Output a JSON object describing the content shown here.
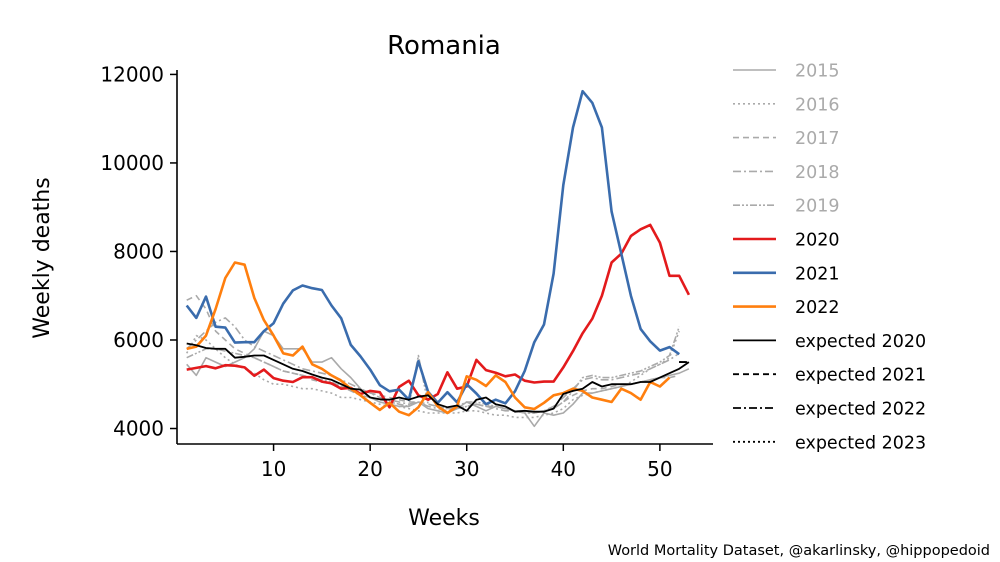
{
  "chart_data": {
    "type": "line",
    "title": "Romania",
    "xlabel": "Weeks",
    "ylabel": "Weekly deaths",
    "xlim": [
      0,
      55.5
    ],
    "ylim": [
      3650,
      12100
    ],
    "xticks": [
      10,
      20,
      30,
      40,
      50
    ],
    "yticks": [
      4000,
      6000,
      8000,
      10000,
      12000
    ],
    "grid": false,
    "legend_position": "right",
    "credit": "World Mortality Dataset, @akarlinsky, @hippopedoid",
    "series": [
      {
        "name": "2015",
        "color": "#aaaaaa",
        "dash": "solid",
        "width": 1.6,
        "x": [
          1,
          2,
          3,
          4,
          5,
          6,
          7,
          8,
          9,
          10,
          11,
          12,
          13,
          14,
          15,
          16,
          17,
          18,
          19,
          20,
          21,
          22,
          23,
          24,
          25,
          26,
          27,
          28,
          29,
          30,
          31,
          32,
          33,
          34,
          35,
          36,
          37,
          38,
          39,
          40,
          41,
          42,
          43,
          44,
          45,
          46,
          47,
          48,
          49,
          50,
          51,
          52,
          53
        ],
        "y": [
          5450,
          5200,
          5600,
          5500,
          5400,
          5500,
          5600,
          5800,
          6200,
          6100,
          5800,
          5800,
          5800,
          5500,
          5500,
          5600,
          5350,
          5150,
          4900,
          4700,
          4600,
          4550,
          4500,
          4500,
          4600,
          4450,
          4400,
          4350,
          4450,
          4600,
          4500,
          4400,
          4500,
          4450,
          4400,
          4350,
          4050,
          4350,
          4300,
          4350,
          4550,
          4800,
          4800,
          4850,
          4900,
          4950,
          5000,
          5050,
          5100,
          5150,
          5200,
          5250,
          5350
        ]
      },
      {
        "name": "2016",
        "color": "#aaaaaa",
        "dash": "dotted",
        "width": 1.6,
        "x": [
          1,
          2,
          3,
          4,
          5,
          6,
          7,
          8,
          9,
          10,
          11,
          12,
          13,
          14,
          15,
          16,
          17,
          18,
          19,
          20,
          21,
          22,
          23,
          24,
          25,
          26,
          27,
          28,
          29,
          30,
          31,
          32,
          33,
          34,
          35,
          36,
          37,
          38,
          39,
          40,
          41,
          42,
          43,
          44,
          45,
          46,
          47,
          48,
          49,
          50,
          51,
          52
        ],
        "y": [
          5700,
          6100,
          6000,
          5800,
          5600,
          5450,
          5350,
          5250,
          5100,
          5000,
          5000,
          4950,
          4900,
          4900,
          4850,
          4800,
          4700,
          4700,
          4650,
          4600,
          4550,
          4500,
          4500,
          4450,
          4400,
          4350,
          4350,
          4350,
          4350,
          4400,
          4400,
          4350,
          4300,
          4300,
          4250,
          4250,
          4250,
          4300,
          4350,
          4450,
          4650,
          4750,
          4800,
          4850,
          4900,
          4950,
          5050,
          5200,
          5350,
          5450,
          5600,
          6200
        ]
      },
      {
        "name": "2017",
        "color": "#aaaaaa",
        "dash": "dashed",
        "width": 1.6,
        "x": [
          1,
          2,
          3,
          4,
          5,
          6,
          7,
          8,
          9,
          10,
          11,
          12,
          13,
          14,
          15,
          16,
          17,
          18,
          19,
          20,
          21,
          22,
          23,
          24,
          25,
          26,
          27,
          28,
          29,
          30,
          31,
          32,
          33,
          34,
          35,
          36,
          37,
          38,
          39,
          40,
          41,
          42,
          43,
          44,
          45,
          46,
          47,
          48,
          49,
          50,
          51,
          52
        ],
        "y": [
          6900,
          7000,
          6700,
          6200,
          6000,
          5800,
          5700,
          5600,
          5500,
          5400,
          5300,
          5250,
          5200,
          5100,
          5050,
          5000,
          4950,
          4900,
          4850,
          4800,
          4750,
          4700,
          4650,
          4600,
          4600,
          4550,
          4500,
          4450,
          4450,
          4500,
          4550,
          4500,
          4500,
          4450,
          4400,
          4400,
          4350,
          4400,
          4450,
          4600,
          4750,
          4850,
          4900,
          4900,
          4950,
          5000,
          5000,
          5050,
          5100,
          5150,
          5150,
          5200
        ]
      },
      {
        "name": "2018",
        "color": "#aaaaaa",
        "dash": "dashdot",
        "width": 1.6,
        "x": [
          1,
          2,
          3,
          4,
          5,
          6,
          7,
          8,
          9,
          10,
          11,
          12,
          13,
          14,
          15,
          16,
          17,
          18,
          19,
          20,
          21,
          22,
          23,
          24,
          25,
          26,
          27,
          28,
          29,
          30,
          31,
          32,
          33,
          34,
          35,
          36,
          37,
          38,
          39,
          40,
          41,
          42,
          43,
          44,
          45,
          46,
          47,
          48,
          49,
          50,
          51,
          52
        ],
        "y": [
          5800,
          6000,
          6200,
          6400,
          6500,
          6300,
          6000,
          5850,
          5750,
          5650,
          5550,
          5450,
          5350,
          5300,
          5250,
          5200,
          5100,
          5000,
          4900,
          4800,
          4700,
          4650,
          4600,
          4550,
          4600,
          4500,
          4450,
          4400,
          4450,
          4500,
          4550,
          4500,
          4450,
          4400,
          4400,
          4350,
          4350,
          4400,
          4500,
          4700,
          4900,
          5100,
          5150,
          5100,
          5100,
          5150,
          5200,
          5250,
          5350,
          5450,
          5550,
          5700
        ]
      },
      {
        "name": "2019",
        "color": "#aaaaaa",
        "dash": "dashdotdot",
        "width": 1.6,
        "x": [
          1,
          2,
          3,
          4,
          5,
          6,
          7,
          8,
          9,
          10,
          11,
          12,
          13,
          14,
          15,
          16,
          17,
          18,
          19,
          20,
          21,
          22,
          23,
          24,
          25,
          26,
          27,
          28,
          29,
          30,
          31,
          32,
          33,
          34,
          35,
          36,
          37,
          38,
          39,
          40,
          41,
          42,
          43,
          44,
          45,
          46,
          47,
          48,
          49,
          50,
          51,
          52
        ],
        "y": [
          5600,
          5700,
          5800,
          5800,
          5750,
          5700,
          5650,
          5600,
          5500,
          5400,
          5300,
          5250,
          5200,
          5150,
          5100,
          5050,
          4950,
          4850,
          4750,
          4700,
          4650,
          4600,
          4550,
          4500,
          5650,
          4550,
          4500,
          4450,
          4500,
          4600,
          4600,
          4550,
          4500,
          4450,
          4400,
          4350,
          4350,
          4400,
          4450,
          4600,
          4850,
          5150,
          5200,
          5150,
          5150,
          5200,
          5250,
          5300,
          5400,
          5500,
          5650,
          6300
        ]
      },
      {
        "name": "2020",
        "color": "#e31a1c",
        "dash": "solid",
        "width": 2.6,
        "x": [
          1,
          2,
          3,
          4,
          5,
          6,
          7,
          8,
          9,
          10,
          11,
          12,
          13,
          14,
          15,
          16,
          17,
          18,
          19,
          20,
          21,
          22,
          23,
          24,
          25,
          26,
          27,
          28,
          29,
          30,
          31,
          32,
          33,
          34,
          35,
          36,
          37,
          38,
          39,
          40,
          41,
          42,
          43,
          44,
          45,
          46,
          47,
          48,
          49,
          50,
          51,
          52,
          53
        ],
        "y": [
          5330,
          5370,
          5410,
          5360,
          5430,
          5420,
          5380,
          5190,
          5330,
          5140,
          5080,
          5050,
          5160,
          5160,
          5060,
          5020,
          4900,
          4920,
          4780,
          4850,
          4820,
          4480,
          4940,
          5080,
          4750,
          4650,
          4780,
          5270,
          4900,
          4950,
          5550,
          5320,
          5260,
          5180,
          5220,
          5080,
          5040,
          5060,
          5060,
          5380,
          5750,
          6150,
          6480,
          7000,
          7750,
          7950,
          8350,
          8500,
          8600,
          8200,
          7450,
          7450,
          7020
        ]
      },
      {
        "name": "2021",
        "color": "#3a6cad",
        "dash": "solid",
        "width": 2.6,
        "x": [
          1,
          2,
          3,
          4,
          5,
          6,
          7,
          8,
          9,
          10,
          11,
          12,
          13,
          14,
          15,
          16,
          17,
          18,
          19,
          20,
          21,
          22,
          23,
          24,
          25,
          26,
          27,
          28,
          29,
          30,
          31,
          32,
          33,
          34,
          35,
          36,
          37,
          38,
          39,
          40,
          41,
          42,
          43,
          44,
          45,
          46,
          47,
          48,
          49,
          50,
          51,
          52
        ],
        "y": [
          6780,
          6500,
          6980,
          6300,
          6280,
          5940,
          5950,
          5950,
          6200,
          6380,
          6820,
          7120,
          7230,
          7170,
          7130,
          6780,
          6490,
          5890,
          5630,
          5330,
          4980,
          4840,
          4880,
          4650,
          5520,
          4830,
          4580,
          4820,
          4590,
          5000,
          4790,
          4550,
          4650,
          4570,
          4840,
          5300,
          5950,
          6350,
          7500,
          9500,
          10800,
          11620,
          11360,
          10800,
          8900,
          7950,
          7000,
          6250,
          5970,
          5760,
          5840,
          5680
        ]
      },
      {
        "name": "2022",
        "color": "#ff7f0e",
        "dash": "solid",
        "width": 2.6,
        "x": [
          1,
          2,
          3,
          4,
          5,
          6,
          7,
          8,
          9,
          10,
          11,
          12,
          13,
          14,
          15,
          16,
          17,
          18,
          19,
          20,
          21,
          22,
          23,
          24,
          25,
          26,
          27,
          28,
          29,
          30,
          31,
          32,
          33,
          34,
          35,
          36,
          37,
          38,
          39,
          40,
          41,
          42,
          43,
          44,
          45,
          46,
          47,
          48,
          49,
          50,
          51
        ],
        "y": [
          5800,
          5850,
          6100,
          6700,
          7400,
          7750,
          7700,
          6950,
          6450,
          6100,
          5700,
          5650,
          5850,
          5450,
          5350,
          5200,
          5080,
          4900,
          4750,
          4580,
          4420,
          4580,
          4380,
          4300,
          4480,
          4820,
          4500,
          4350,
          4500,
          5180,
          5100,
          4960,
          5200,
          5050,
          4700,
          4480,
          4440,
          4580,
          4750,
          4800,
          4900,
          4850,
          4700,
          4650,
          4600,
          4900,
          4800,
          4650,
          5050,
          4950,
          5150
        ]
      },
      {
        "name": "expected 2020",
        "color": "#000000",
        "dash": "solid",
        "width": 1.8,
        "x": [
          1,
          2,
          3,
          4,
          5,
          6,
          7,
          8,
          9,
          10,
          11,
          12,
          13,
          14,
          15,
          16,
          17,
          18,
          19,
          20,
          21,
          22,
          23,
          24,
          25,
          26,
          27,
          28,
          29,
          30,
          31,
          32,
          33,
          34,
          35,
          36,
          37,
          38,
          39,
          40,
          41,
          42,
          43,
          44,
          45,
          46,
          47,
          48,
          49,
          50,
          51,
          52,
          53
        ],
        "y": [
          5920,
          5880,
          5820,
          5800,
          5800,
          5600,
          5620,
          5650,
          5650,
          5550,
          5450,
          5350,
          5300,
          5220,
          5150,
          5100,
          5000,
          4900,
          4880,
          4700,
          4660,
          4650,
          4700,
          4650,
          4720,
          4750,
          4550,
          4480,
          4520,
          4400,
          4650,
          4700,
          4550,
          4500,
          4380,
          4400,
          4380,
          4380,
          4450,
          4780,
          4850,
          4900,
          5050,
          4950,
          5000,
          5000,
          5000,
          5050,
          5050,
          5150,
          5250,
          5350,
          5500
        ]
      },
      {
        "name": "expected 2021",
        "color": "#000000",
        "dash": "dashed",
        "width": 1.8,
        "x": [
          52,
          53
        ],
        "y": [
          5500,
          5500
        ]
      },
      {
        "name": "expected 2022",
        "color": "#000000",
        "dash": "dashdot",
        "width": 1.8,
        "x": [
          52,
          53
        ],
        "y": [
          5500,
          5500
        ]
      },
      {
        "name": "expected 2023",
        "color": "#000000",
        "dash": "dotted",
        "width": 1.8,
        "x": [
          52,
          53
        ],
        "y": [
          5500,
          5500
        ]
      }
    ]
  }
}
